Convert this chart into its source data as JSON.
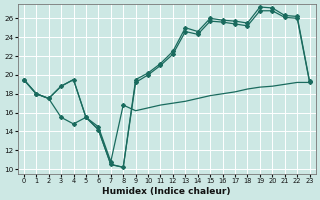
{
  "xlabel": "Humidex (Indice chaleur)",
  "bg_color": "#cde8e4",
  "grid_color": "#b0d8d2",
  "line_color": "#1a6b5e",
  "xlim": [
    -0.5,
    23.5
  ],
  "ylim": [
    9.5,
    27.5
  ],
  "yticks": [
    10,
    12,
    14,
    16,
    18,
    20,
    22,
    24,
    26
  ],
  "xticks": [
    0,
    1,
    2,
    3,
    4,
    5,
    6,
    7,
    8,
    9,
    10,
    11,
    12,
    13,
    14,
    15,
    16,
    17,
    18,
    19,
    20,
    21,
    22,
    23
  ],
  "upper_a_x": [
    0,
    1,
    2,
    3,
    4,
    5,
    6,
    7,
    8,
    9,
    10,
    11,
    12,
    13,
    14,
    15,
    16,
    17,
    18,
    19,
    20,
    21,
    22,
    23
  ],
  "upper_a_y": [
    19.5,
    18.0,
    17.5,
    18.8,
    19.5,
    15.5,
    14.2,
    10.5,
    10.2,
    19.5,
    20.2,
    21.2,
    22.5,
    25.0,
    24.6,
    26.0,
    25.8,
    25.7,
    25.5,
    27.2,
    27.1,
    26.3,
    26.2,
    19.3
  ],
  "upper_b_x": [
    0,
    1,
    2,
    3,
    4,
    5,
    6,
    7,
    8,
    9,
    10,
    11,
    12,
    13,
    14,
    15,
    16,
    17,
    18,
    19,
    20,
    21,
    22,
    23
  ],
  "upper_b_y": [
    19.5,
    18.0,
    17.5,
    18.8,
    19.5,
    15.5,
    14.2,
    10.5,
    10.2,
    19.2,
    20.0,
    21.0,
    22.2,
    24.6,
    24.3,
    25.7,
    25.6,
    25.4,
    25.2,
    26.8,
    26.8,
    26.1,
    26.0,
    19.2
  ],
  "lower_x": [
    0,
    1,
    2,
    3,
    4,
    5,
    6,
    7,
    8,
    9,
    10,
    11,
    12,
    13,
    14,
    15,
    16,
    17,
    18,
    19,
    20,
    21,
    22,
    23
  ],
  "lower_y": [
    19.5,
    18.0,
    17.5,
    15.5,
    14.8,
    15.5,
    14.5,
    10.8,
    16.8,
    16.2,
    16.5,
    16.8,
    17.0,
    17.2,
    17.5,
    17.8,
    18.0,
    18.2,
    18.5,
    18.7,
    18.8,
    19.0,
    19.2,
    19.2
  ]
}
